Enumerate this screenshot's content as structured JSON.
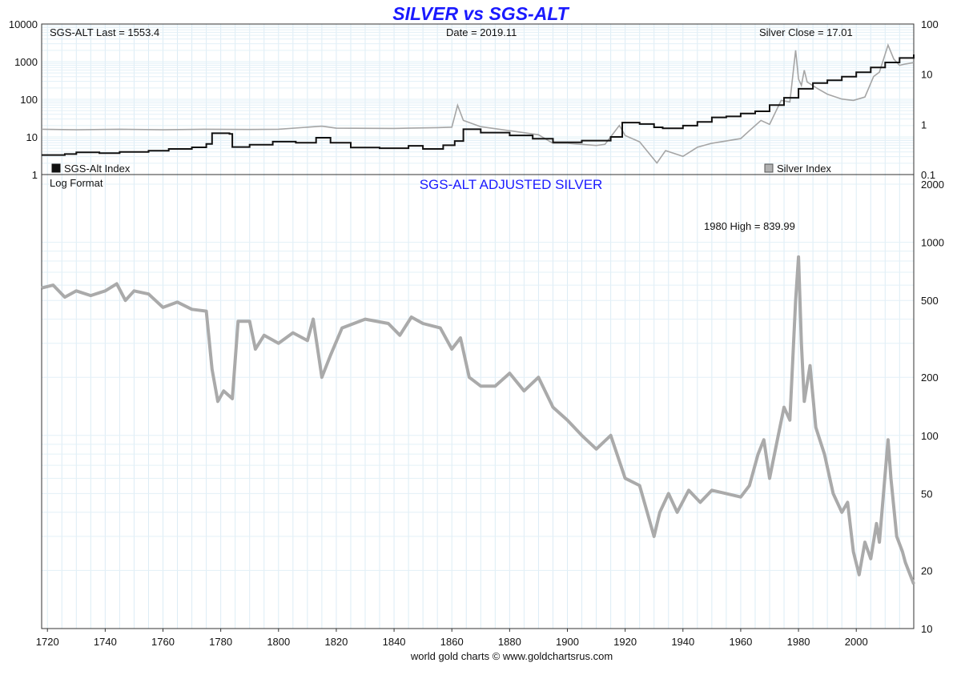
{
  "chart_data": [
    {
      "type": "line",
      "panel": "top",
      "title": "SILVER vs SGS-ALT",
      "scale": "log",
      "x_range": [
        1718,
        2019.9
      ],
      "ylim_left": [
        1,
        10000
      ],
      "ylim_right": [
        0.1,
        100
      ],
      "y_ticks_left": [
        "10000",
        "1000",
        "100",
        "10",
        "1"
      ],
      "y_ticks_right": [
        "100",
        "10",
        "1",
        "0.1"
      ],
      "annotations": {
        "last": "SGS-ALT Last = 1553.4",
        "date": "Date = 2019.11",
        "close": "Silver Close = 17.01"
      },
      "legend_position": "bottom",
      "series": [
        {
          "name": "SGS-Alt Index",
          "color": "#111111",
          "axis": "left",
          "points": [
            [
              1718,
              3.3
            ],
            [
              1726,
              3.5
            ],
            [
              1730,
              3.9
            ],
            [
              1738,
              3.7
            ],
            [
              1745,
              4.0
            ],
            [
              1755,
              4.3
            ],
            [
              1762,
              4.8
            ],
            [
              1770,
              5.3
            ],
            [
              1775,
              6.5
            ],
            [
              1777,
              12.5
            ],
            [
              1783,
              12.0
            ],
            [
              1784,
              5.4
            ],
            [
              1790,
              6.2
            ],
            [
              1798,
              7.5
            ],
            [
              1806,
              7.0
            ],
            [
              1813,
              9.5
            ],
            [
              1818,
              7.0
            ],
            [
              1825,
              5.2
            ],
            [
              1835,
              5.0
            ],
            [
              1845,
              5.8
            ],
            [
              1850,
              4.8
            ],
            [
              1857,
              6.0
            ],
            [
              1861,
              7.8
            ],
            [
              1864,
              16.0
            ],
            [
              1870,
              13.0
            ],
            [
              1880,
              11.0
            ],
            [
              1888,
              9.0
            ],
            [
              1895,
              7.2
            ],
            [
              1905,
              8.0
            ],
            [
              1915,
              10.0
            ],
            [
              1919,
              24.0
            ],
            [
              1925,
              22.0
            ],
            [
              1930,
              18.0
            ],
            [
              1933,
              17.0
            ],
            [
              1940,
              20.0
            ],
            [
              1945,
              25.0
            ],
            [
              1950,
              33.0
            ],
            [
              1955,
              35.0
            ],
            [
              1960,
              42.0
            ],
            [
              1965,
              48.0
            ],
            [
              1970,
              70.0
            ],
            [
              1975,
              110.0
            ],
            [
              1980,
              190.0
            ],
            [
              1985,
              270.0
            ],
            [
              1990,
              320.0
            ],
            [
              1995,
              400.0
            ],
            [
              2000,
              520.0
            ],
            [
              2005,
              700.0
            ],
            [
              2010,
              950.0
            ],
            [
              2015,
              1250.0
            ],
            [
              2019.9,
              1553.4
            ]
          ]
        },
        {
          "name": "Silver Index",
          "color": "#a5a5a5",
          "axis": "right",
          "points": [
            [
              1718,
              0.8
            ],
            [
              1730,
              0.78
            ],
            [
              1745,
              0.8
            ],
            [
              1760,
              0.78
            ],
            [
              1775,
              0.8
            ],
            [
              1790,
              0.79
            ],
            [
              1800,
              0.8
            ],
            [
              1815,
              0.92
            ],
            [
              1820,
              0.84
            ],
            [
              1840,
              0.83
            ],
            [
              1855,
              0.86
            ],
            [
              1860,
              0.88
            ],
            [
              1862,
              2.4
            ],
            [
              1864,
              1.2
            ],
            [
              1870,
              0.9
            ],
            [
              1880,
              0.75
            ],
            [
              1890,
              0.62
            ],
            [
              1895,
              0.42
            ],
            [
              1900,
              0.42
            ],
            [
              1910,
              0.38
            ],
            [
              1913,
              0.4
            ],
            [
              1918,
              0.95
            ],
            [
              1920,
              0.6
            ],
            [
              1925,
              0.45
            ],
            [
              1931,
              0.17
            ],
            [
              1934,
              0.3
            ],
            [
              1940,
              0.23
            ],
            [
              1945,
              0.35
            ],
            [
              1950,
              0.42
            ],
            [
              1960,
              0.52
            ],
            [
              1963,
              0.75
            ],
            [
              1967,
              1.2
            ],
            [
              1970,
              1.0
            ],
            [
              1974,
              3.0
            ],
            [
              1977,
              2.8
            ],
            [
              1979,
              30.0
            ],
            [
              1980,
              8.0
            ],
            [
              1981,
              6.0
            ],
            [
              1982,
              12.0
            ],
            [
              1983,
              7.0
            ],
            [
              1987,
              5.0
            ],
            [
              1990,
              4.0
            ],
            [
              1995,
              3.2
            ],
            [
              1999,
              3.0
            ],
            [
              2003,
              3.5
            ],
            [
              2006,
              9.0
            ],
            [
              2008,
              11.0
            ],
            [
              2011,
              38.0
            ],
            [
              2013,
              20.0
            ],
            [
              2015,
              15.0
            ],
            [
              2017,
              16.0
            ],
            [
              2019.9,
              17.01
            ]
          ]
        }
      ]
    },
    {
      "type": "line",
      "panel": "bottom",
      "title": "SGS-ALT ADJUSTED  SILVER",
      "scale_label": "Log Format",
      "scale": "log",
      "x_range": [
        1718,
        2019.9
      ],
      "ylim": [
        10,
        2000
      ],
      "y_ticks": [
        "2000",
        "1000",
        "500",
        "200",
        "100",
        "50",
        "20",
        "10"
      ],
      "x_ticks": [
        "1720",
        "1740",
        "1760",
        "1780",
        "1800",
        "1820",
        "1840",
        "1860",
        "1880",
        "1900",
        "1920",
        "1940",
        "1960",
        "1980",
        "2000"
      ],
      "annotations": {
        "high": "1980 High = 839.99"
      },
      "series": [
        {
          "name": "SGS-ALT Adjusted Silver",
          "color": "#aaaaaa",
          "points": [
            [
              1718,
              580
            ],
            [
              1722,
              600
            ],
            [
              1726,
              520
            ],
            [
              1730,
              560
            ],
            [
              1735,
              530
            ],
            [
              1740,
              560
            ],
            [
              1744,
              610
            ],
            [
              1747,
              500
            ],
            [
              1750,
              560
            ],
            [
              1755,
              540
            ],
            [
              1760,
              460
            ],
            [
              1765,
              490
            ],
            [
              1770,
              450
            ],
            [
              1775,
              440
            ],
            [
              1777,
              220
            ],
            [
              1779,
              150
            ],
            [
              1781,
              170
            ],
            [
              1784,
              155
            ],
            [
              1786,
              390
            ],
            [
              1790,
              390
            ],
            [
              1792,
              280
            ],
            [
              1795,
              330
            ],
            [
              1800,
              300
            ],
            [
              1805,
              340
            ],
            [
              1810,
              310
            ],
            [
              1812,
              400
            ],
            [
              1815,
              200
            ],
            [
              1818,
              260
            ],
            [
              1822,
              360
            ],
            [
              1830,
              400
            ],
            [
              1838,
              380
            ],
            [
              1842,
              330
            ],
            [
              1846,
              410
            ],
            [
              1850,
              380
            ],
            [
              1856,
              360
            ],
            [
              1860,
              280
            ],
            [
              1863,
              320
            ],
            [
              1866,
              200
            ],
            [
              1870,
              180
            ],
            [
              1875,
              180
            ],
            [
              1880,
              210
            ],
            [
              1885,
              170
            ],
            [
              1890,
              200
            ],
            [
              1895,
              140
            ],
            [
              1900,
              120
            ],
            [
              1905,
              100
            ],
            [
              1910,
              85
            ],
            [
              1915,
              100
            ],
            [
              1920,
              60
            ],
            [
              1925,
              55
            ],
            [
              1930,
              30
            ],
            [
              1932,
              40
            ],
            [
              1935,
              50
            ],
            [
              1938,
              40
            ],
            [
              1942,
              52
            ],
            [
              1946,
              45
            ],
            [
              1950,
              52
            ],
            [
              1955,
              50
            ],
            [
              1960,
              48
            ],
            [
              1963,
              55
            ],
            [
              1966,
              80
            ],
            [
              1968,
              95
            ],
            [
              1970,
              60
            ],
            [
              1973,
              100
            ],
            [
              1975,
              140
            ],
            [
              1977,
              120
            ],
            [
              1979,
              500
            ],
            [
              1980,
              840
            ],
            [
              1981,
              300
            ],
            [
              1982,
              150
            ],
            [
              1984,
              230
            ],
            [
              1986,
              110
            ],
            [
              1989,
              80
            ],
            [
              1992,
              50
            ],
            [
              1995,
              40
            ],
            [
              1997,
              45
            ],
            [
              1999,
              25
            ],
            [
              2001,
              19
            ],
            [
              2003,
              28
            ],
            [
              2005,
              23
            ],
            [
              2007,
              35
            ],
            [
              2008,
              28
            ],
            [
              2011,
              95
            ],
            [
              2012,
              60
            ],
            [
              2014,
              30
            ],
            [
              2016,
              25
            ],
            [
              2017,
              22
            ],
            [
              2019.9,
              17
            ]
          ]
        }
      ]
    }
  ],
  "footer": "world gold charts © www.goldchartsrus.com"
}
